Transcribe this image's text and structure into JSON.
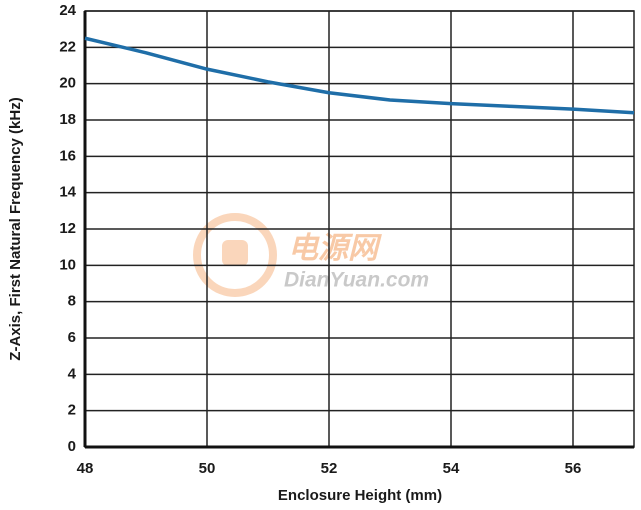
{
  "chart_data": {
    "type": "line",
    "x_label": "Enclosure Height (mm)",
    "y_label": "Z-Axis, First Natural Frequency (kHz)",
    "x": [
      48,
      49,
      50,
      51,
      52,
      53,
      54,
      55,
      56,
      57
    ],
    "series": [
      {
        "name": "Z-Axis",
        "color": "#1f6ea8",
        "values": [
          22.5,
          21.7,
          20.8,
          20.1,
          19.5,
          19.1,
          18.9,
          18.75,
          18.6,
          18.4
        ]
      }
    ],
    "xlim": [
      48,
      57
    ],
    "xticks": [
      48,
      50,
      52,
      54,
      56
    ],
    "ylim": [
      0,
      24
    ],
    "yticks": [
      0,
      2,
      4,
      6,
      8,
      10,
      12,
      14,
      16,
      18,
      20,
      22,
      24
    ],
    "grid": true
  },
  "watermark": {
    "title": "电源网",
    "site": "DianYuan.com"
  }
}
